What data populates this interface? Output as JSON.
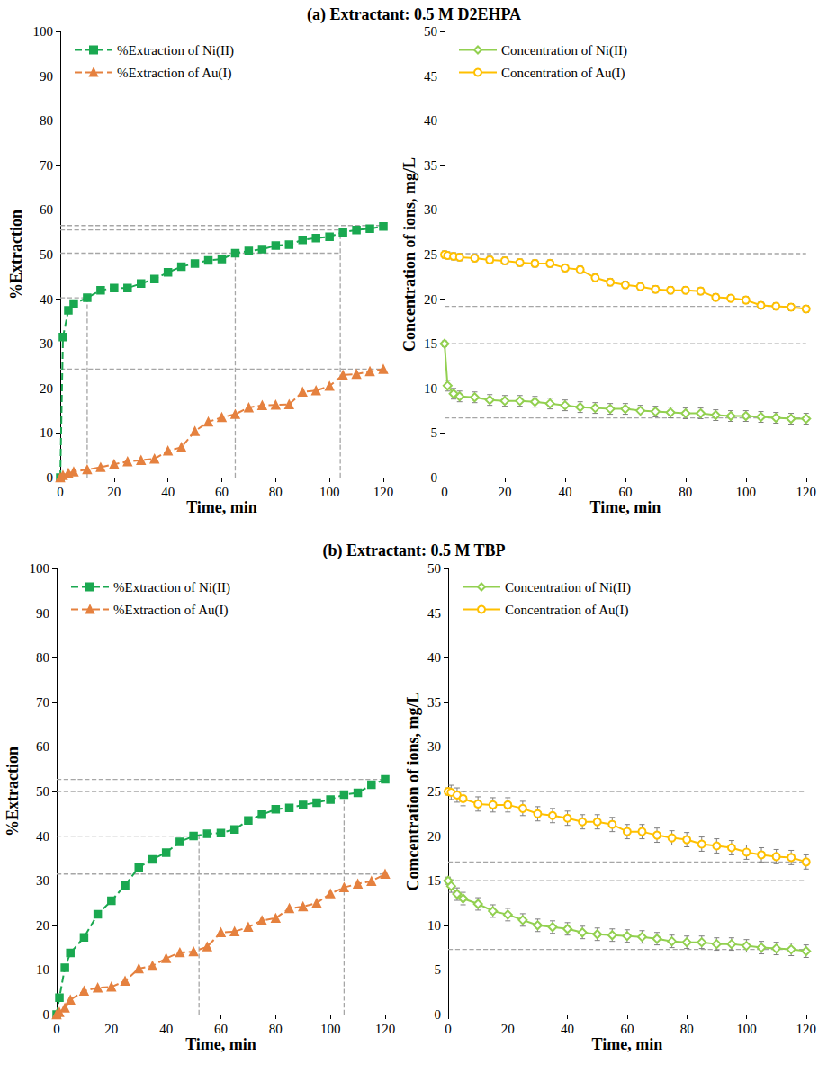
{
  "chart_data": [
    {
      "type": "line",
      "title": "(a) Extractant: 0.5 M D2EHPA",
      "x_label": "Time, min",
      "y_label": "%Extraction",
      "x": [
        0,
        1,
        3,
        5,
        10,
        15,
        20,
        25,
        30,
        35,
        40,
        45,
        50,
        55,
        60,
        65,
        70,
        75,
        80,
        85,
        90,
        95,
        100,
        105,
        110,
        115,
        120
      ],
      "series": [
        {
          "name": "%Extraction of Ni(II)",
          "color": "#1aa850",
          "marker": "square",
          "line_style": "dashed",
          "values": [
            0,
            31.5,
            37.5,
            39,
            40.3,
            42,
            42.5,
            42.5,
            43.5,
            44.5,
            46,
            47.3,
            48,
            48.7,
            49,
            50.3,
            50.8,
            51.2,
            52,
            52.2,
            53.3,
            53.7,
            54,
            55,
            55.5,
            55.8,
            56.3
          ]
        },
        {
          "name": "%Extraction of Au(I)",
          "color": "#e5813f",
          "marker": "triangle",
          "line_style": "dashed",
          "values": [
            0,
            0.5,
            1,
            1.3,
            1.8,
            2.3,
            3,
            3.6,
            3.9,
            4.2,
            6,
            6.8,
            10.4,
            12.5,
            13.5,
            14.2,
            15.7,
            16.2,
            16.3,
            16.4,
            19.2,
            19.5,
            20.5,
            23,
            23.2,
            23.8,
            24.3
          ]
        }
      ],
      "xlim": [
        0,
        120
      ],
      "xticks": [
        0,
        20,
        40,
        60,
        80,
        100,
        120
      ],
      "ylim": [
        0,
        100
      ],
      "yticks": [
        0,
        10,
        20,
        30,
        40,
        50,
        60,
        70,
        80,
        90,
        100
      ],
      "grid": false,
      "legend": "upper left",
      "guide_lines": [
        {
          "x": [
            0,
            120
          ],
          "y": [
            56.5,
            56.5
          ]
        },
        {
          "x": [
            0,
            104
          ],
          "y": [
            55.5,
            55.5
          ]
        },
        {
          "x": [
            0,
            104
          ],
          "y": [
            50.3,
            50.3
          ]
        },
        {
          "x": [
            0,
            120
          ],
          "y": [
            24.3,
            24.3
          ]
        },
        {
          "x": [
            0,
            10
          ],
          "y": [
            40.3,
            40.3
          ]
        },
        {
          "x": [
            10,
            10
          ],
          "y": [
            0,
            40.3
          ]
        },
        {
          "x": [
            65,
            65
          ],
          "y": [
            0,
            50.3
          ]
        },
        {
          "x": [
            104,
            104
          ],
          "y": [
            0,
            55.5
          ]
        }
      ]
    },
    {
      "type": "line",
      "x_label": "Time, min",
      "y_label": "Concentration of ions, mg/L",
      "x": [
        0,
        1,
        3,
        5,
        10,
        15,
        20,
        25,
        30,
        35,
        40,
        45,
        50,
        55,
        60,
        65,
        70,
        75,
        80,
        85,
        90,
        95,
        100,
        105,
        110,
        115,
        120
      ],
      "series": [
        {
          "name": "Concentration of Ni(II)",
          "color": "#92d050",
          "marker": "diamond-open",
          "line_style": "solid",
          "values": [
            15,
            10.3,
            9.4,
            9.1,
            9.0,
            8.7,
            8.6,
            8.6,
            8.5,
            8.3,
            8.1,
            7.9,
            7.8,
            7.7,
            7.7,
            7.5,
            7.4,
            7.3,
            7.2,
            7.2,
            7.0,
            6.9,
            6.9,
            6.8,
            6.7,
            6.6,
            6.6
          ],
          "errors": [
            0.3,
            0.6,
            0.6,
            0.6,
            0.6,
            0.6,
            0.6,
            0.6,
            0.6,
            0.6,
            0.6,
            0.6,
            0.6,
            0.6,
            0.6,
            0.6,
            0.6,
            0.6,
            0.6,
            0.6,
            0.6,
            0.6,
            0.6,
            0.6,
            0.6,
            0.6,
            0.6
          ]
        },
        {
          "name": "Concentration of Au(I)",
          "color": "#ffc000",
          "marker": "circle-open",
          "line_style": "solid",
          "values": [
            25,
            24.9,
            24.8,
            24.7,
            24.6,
            24.4,
            24.3,
            24.1,
            24.0,
            24.0,
            23.5,
            23.3,
            22.4,
            21.9,
            21.6,
            21.4,
            21.1,
            21.0,
            21.0,
            20.9,
            20.2,
            20.1,
            19.9,
            19.3,
            19.2,
            19.1,
            18.9
          ],
          "errors": [
            0.4,
            0.4,
            0.4,
            0.4,
            0.4,
            0.4,
            0.4,
            0.4,
            0.4,
            0.4,
            0.4,
            0.4,
            0.4,
            0.4,
            0.4,
            0.4,
            0.4,
            0.4,
            0.4,
            0.4,
            0.4,
            0.4,
            0.4,
            0.4,
            0.4,
            0.4,
            0.4
          ]
        }
      ],
      "xlim": [
        0,
        120
      ],
      "xticks": [
        0,
        20,
        40,
        60,
        80,
        100,
        120
      ],
      "ylim": [
        0,
        50
      ],
      "yticks": [
        0,
        5,
        10,
        15,
        20,
        25,
        30,
        35,
        40,
        45,
        50
      ],
      "grid": false,
      "legend": "upper left",
      "guide_lines": [
        {
          "x": [
            0,
            120
          ],
          "y": [
            25.1,
            25.1
          ]
        },
        {
          "x": [
            0,
            120
          ],
          "y": [
            19.2,
            19.2
          ]
        },
        {
          "x": [
            0,
            120
          ],
          "y": [
            15,
            15
          ]
        },
        {
          "x": [
            0,
            120
          ],
          "y": [
            6.7,
            6.7
          ]
        }
      ]
    },
    {
      "type": "line",
      "title": "(b) Extractant: 0.5 M TBP",
      "x_label": "Time, min",
      "y_label": "%Extraction",
      "x": [
        0,
        1,
        3,
        5,
        10,
        15,
        20,
        25,
        30,
        35,
        40,
        45,
        50,
        55,
        60,
        65,
        70,
        75,
        80,
        85,
        90,
        95,
        100,
        105,
        110,
        115,
        120
      ],
      "series": [
        {
          "name": "%Extraction of Ni(II)",
          "color": "#1aa850",
          "marker": "square",
          "line_style": "dashed",
          "values": [
            0,
            3.8,
            10.5,
            13.8,
            17.3,
            22.5,
            25.5,
            29,
            33,
            34.8,
            36.3,
            38.7,
            40,
            40.5,
            40.7,
            41.5,
            43.5,
            44.8,
            46,
            46.3,
            47,
            47.5,
            48.2,
            49.3,
            49.7,
            51.5,
            52.7
          ]
        },
        {
          "name": "%Extraction of Au(I)",
          "color": "#e5813f",
          "marker": "triangle",
          "line_style": "dashed",
          "values": [
            0,
            0.5,
            1.5,
            3.3,
            5.3,
            6,
            6.2,
            7.5,
            10.3,
            10.9,
            12.6,
            13.9,
            14.1,
            15.2,
            18.4,
            18.6,
            19.6,
            21.1,
            21.6,
            23.8,
            24.2,
            25,
            27.1,
            28.5,
            29.3,
            29.9,
            31.5
          ]
        }
      ],
      "xlim": [
        0,
        120
      ],
      "xticks": [
        0,
        20,
        40,
        60,
        80,
        100,
        120
      ],
      "ylim": [
        0,
        100
      ],
      "yticks": [
        0,
        10,
        20,
        30,
        40,
        50,
        60,
        70,
        80,
        90,
        100
      ],
      "grid": false,
      "legend": "upper left",
      "guide_lines": [
        {
          "x": [
            0,
            120
          ],
          "y": [
            52.7,
            52.7
          ]
        },
        {
          "x": [
            0,
            105
          ],
          "y": [
            50,
            50
          ]
        },
        {
          "x": [
            0,
            52
          ],
          "y": [
            40,
            40
          ]
        },
        {
          "x": [
            0,
            120
          ],
          "y": [
            31.5,
            31.5
          ]
        },
        {
          "x": [
            52,
            52
          ],
          "y": [
            0,
            40
          ]
        },
        {
          "x": [
            105,
            105
          ],
          "y": [
            0,
            50
          ]
        }
      ]
    },
    {
      "type": "line",
      "x_label": "Time, min",
      "y_label": "Comcentration of ions, mg/L",
      "x": [
        0,
        1,
        3,
        5,
        10,
        15,
        20,
        25,
        30,
        35,
        40,
        45,
        50,
        55,
        60,
        65,
        70,
        75,
        80,
        85,
        90,
        95,
        100,
        105,
        110,
        115,
        120
      ],
      "series": [
        {
          "name": "Concentration of Ni(II)",
          "color": "#92d050",
          "marker": "diamond-open",
          "line_style": "solid",
          "values": [
            15,
            14.4,
            13.5,
            13,
            12.4,
            11.6,
            11.2,
            10.6,
            10,
            9.8,
            9.6,
            9.2,
            9,
            8.9,
            8.8,
            8.7,
            8.5,
            8.2,
            8.1,
            8.1,
            7.9,
            7.9,
            7.7,
            7.5,
            7.4,
            7.3,
            7.1
          ],
          "errors": [
            0.4,
            0.7,
            0.7,
            0.7,
            0.7,
            0.7,
            0.7,
            0.7,
            0.7,
            0.7,
            0.7,
            0.7,
            0.7,
            0.7,
            0.7,
            0.7,
            0.7,
            0.7,
            0.7,
            0.7,
            0.7,
            0.7,
            0.7,
            0.7,
            0.7,
            0.7,
            0.7
          ]
        },
        {
          "name": "Concentration of Au(I)",
          "color": "#ffc000",
          "marker": "circle-open",
          "line_style": "solid",
          "values": [
            25,
            24.9,
            24.6,
            24.2,
            23.6,
            23.5,
            23.5,
            23.1,
            22.5,
            22.3,
            22,
            21.6,
            21.6,
            21.3,
            20.5,
            20.5,
            20.1,
            19.8,
            19.6,
            19.1,
            18.9,
            18.7,
            18.2,
            17.9,
            17.7,
            17.6,
            17.1
          ],
          "errors": [
            0.4,
            0.8,
            0.8,
            0.8,
            0.8,
            0.8,
            0.8,
            0.8,
            0.8,
            0.8,
            0.8,
            0.8,
            0.8,
            0.8,
            0.8,
            0.8,
            0.8,
            0.8,
            0.8,
            0.8,
            0.8,
            0.8,
            0.8,
            0.8,
            0.8,
            0.8,
            0.8
          ]
        }
      ],
      "xlim": [
        0,
        120
      ],
      "xticks": [
        0,
        20,
        40,
        60,
        80,
        100,
        120
      ],
      "ylim": [
        0,
        50
      ],
      "yticks": [
        0,
        5,
        10,
        15,
        20,
        25,
        30,
        35,
        40,
        45,
        50
      ],
      "grid": false,
      "legend": "upper left",
      "guide_lines": [
        {
          "x": [
            0,
            120
          ],
          "y": [
            25,
            25
          ]
        },
        {
          "x": [
            0,
            120
          ],
          "y": [
            17.1,
            17.1
          ]
        },
        {
          "x": [
            0,
            120
          ],
          "y": [
            15,
            15
          ]
        },
        {
          "x": [
            0,
            120
          ],
          "y": [
            7.3,
            7.3
          ]
        }
      ]
    }
  ]
}
